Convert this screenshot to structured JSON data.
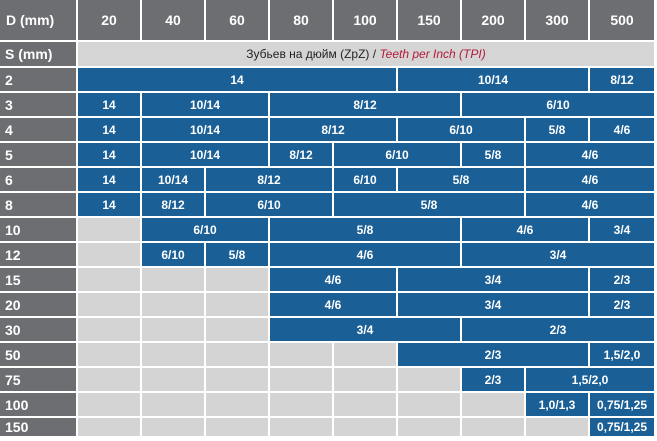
{
  "table": {
    "corner_label": "D (mm)",
    "thickness_label": "S (mm)",
    "diameters": [
      "20",
      "40",
      "60",
      "80",
      "100",
      "150",
      "200",
      "300",
      "500"
    ],
    "caption_ru": "Зубьев на дюйм (ZpZ) /",
    "caption_en": "Teeth per Inch (TPI)",
    "colors": {
      "header": "#6d6e71",
      "value": "#1a5f96",
      "empty": "#d4d4d4",
      "caption_accent": "#b3193a"
    },
    "rows": [
      {
        "s": "2",
        "cells": [
          {
            "text": "14",
            "start": 0,
            "end": 5
          },
          {
            "text": "10/14",
            "start": 5,
            "end": 8
          },
          {
            "text": "8/12",
            "start": 8,
            "end": 9
          }
        ]
      },
      {
        "s": "3",
        "cells": [
          {
            "text": "14",
            "start": 0,
            "end": 1
          },
          {
            "text": "10/14",
            "start": 1,
            "end": 3
          },
          {
            "text": "8/12",
            "start": 3,
            "end": 6
          },
          {
            "text": "6/10",
            "start": 6,
            "end": 9
          }
        ]
      },
      {
        "s": "4",
        "cells": [
          {
            "text": "14",
            "start": 0,
            "end": 1
          },
          {
            "text": "10/14",
            "start": 1,
            "end": 3
          },
          {
            "text": "8/12",
            "start": 3,
            "end": 5
          },
          {
            "text": "6/10",
            "start": 5,
            "end": 7
          },
          {
            "text": "5/8",
            "start": 7,
            "end": 8
          },
          {
            "text": "4/6",
            "start": 8,
            "end": 9
          }
        ]
      },
      {
        "s": "5",
        "cells": [
          {
            "text": "14",
            "start": 0,
            "end": 1
          },
          {
            "text": "10/14",
            "start": 1,
            "end": 3
          },
          {
            "text": "8/12",
            "start": 3,
            "end": 4
          },
          {
            "text": "6/10",
            "start": 4,
            "end": 6
          },
          {
            "text": "5/8",
            "start": 6,
            "end": 7
          },
          {
            "text": "4/6",
            "start": 7,
            "end": 9
          }
        ]
      },
      {
        "s": "6",
        "cells": [
          {
            "text": "14",
            "start": 0,
            "end": 1
          },
          {
            "text": "10/14",
            "start": 1,
            "end": 2
          },
          {
            "text": "8/12",
            "start": 2,
            "end": 4
          },
          {
            "text": "6/10",
            "start": 4,
            "end": 5
          },
          {
            "text": "5/8",
            "start": 5,
            "end": 7
          },
          {
            "text": "4/6",
            "start": 7,
            "end": 9
          }
        ]
      },
      {
        "s": "8",
        "cells": [
          {
            "text": "14",
            "start": 0,
            "end": 1
          },
          {
            "text": "8/12",
            "start": 1,
            "end": 2
          },
          {
            "text": "6/10",
            "start": 2,
            "end": 4
          },
          {
            "text": "5/8",
            "start": 4,
            "end": 7
          },
          {
            "text": "4/6",
            "start": 7,
            "end": 9
          }
        ]
      },
      {
        "s": "10",
        "cells": [
          {
            "text": "6/10",
            "start": 1,
            "end": 3
          },
          {
            "text": "5/8",
            "start": 3,
            "end": 6
          },
          {
            "text": "4/6",
            "start": 6,
            "end": 8
          },
          {
            "text": "3/4",
            "start": 8,
            "end": 9
          }
        ]
      },
      {
        "s": "12",
        "cells": [
          {
            "text": "6/10",
            "start": 1,
            "end": 2
          },
          {
            "text": "5/8",
            "start": 2,
            "end": 3
          },
          {
            "text": "4/6",
            "start": 3,
            "end": 6
          },
          {
            "text": "3/4",
            "start": 6,
            "end": 9
          }
        ]
      },
      {
        "s": "15",
        "cells": [
          {
            "text": "4/6",
            "start": 3,
            "end": 5
          },
          {
            "text": "3/4",
            "start": 5,
            "end": 8
          },
          {
            "text": "2/3",
            "start": 8,
            "end": 9
          }
        ]
      },
      {
        "s": "20",
        "cells": [
          {
            "text": "4/6",
            "start": 3,
            "end": 5
          },
          {
            "text": "3/4",
            "start": 5,
            "end": 8
          },
          {
            "text": "2/3",
            "start": 8,
            "end": 9
          }
        ]
      },
      {
        "s": "30",
        "cells": [
          {
            "text": "3/4",
            "start": 3,
            "end": 6
          },
          {
            "text": "2/3",
            "start": 6,
            "end": 9
          }
        ]
      },
      {
        "s": "50",
        "cells": [
          {
            "text": "2/3",
            "start": 5,
            "end": 8
          },
          {
            "text": "1,5/2,0",
            "start": 8,
            "end": 9
          }
        ]
      },
      {
        "s": "75",
        "cells": [
          {
            "text": "2/3",
            "start": 6,
            "end": 7
          },
          {
            "text": "1,5/2,0",
            "start": 7,
            "end": 9
          }
        ]
      },
      {
        "s": "100",
        "cells": [
          {
            "text": "1,0/1,3",
            "start": 7,
            "end": 8
          },
          {
            "text": "0,75/1,25",
            "start": 8,
            "end": 9
          }
        ]
      },
      {
        "s": "150",
        "cells": [
          {
            "text": "0,75/1,25",
            "start": 8,
            "end": 9
          }
        ]
      }
    ]
  }
}
